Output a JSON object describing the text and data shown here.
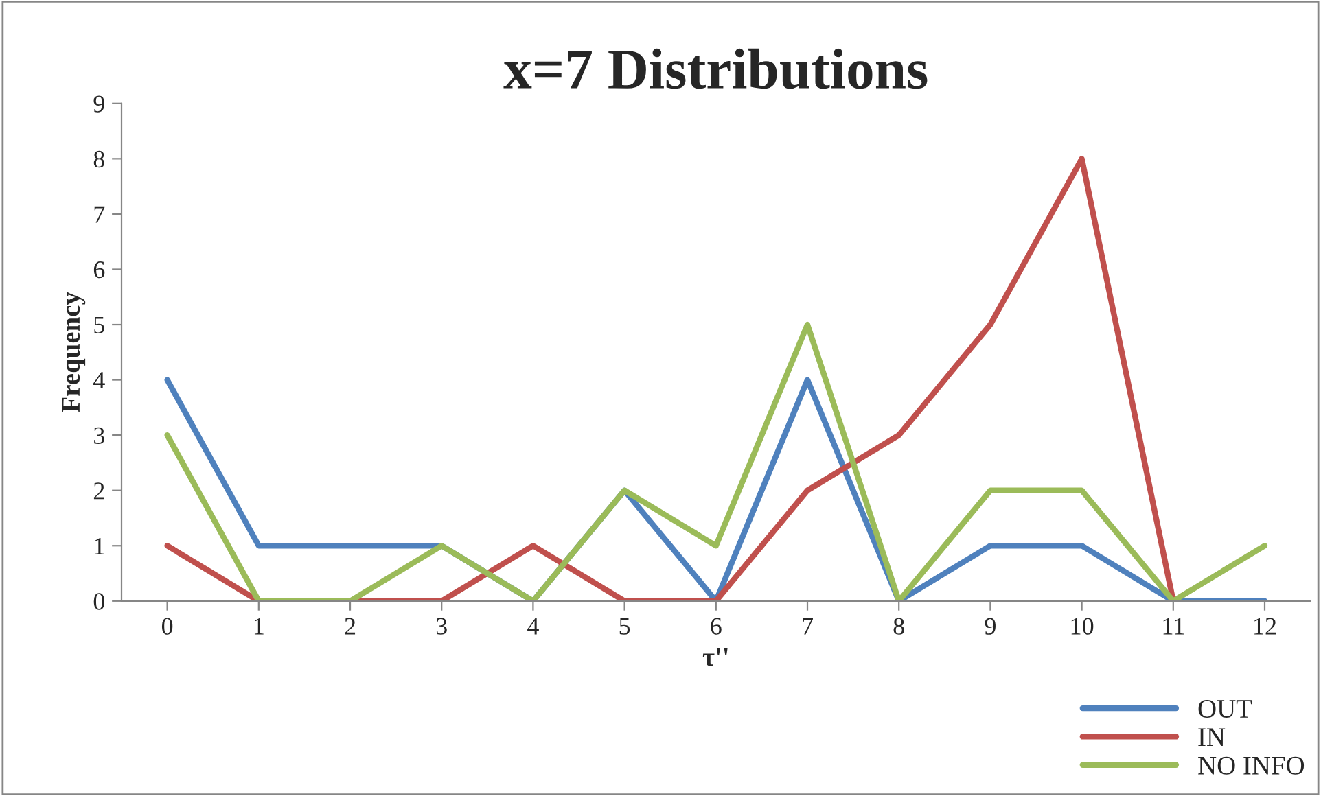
{
  "chart_data": {
    "type": "line",
    "title": "x=7 Distributions",
    "xlabel": "τ''",
    "ylabel": "Frequency",
    "categories": [
      "0",
      "1",
      "2",
      "3",
      "4",
      "5",
      "6",
      "7",
      "8",
      "9",
      "10",
      "11",
      "12"
    ],
    "series": [
      {
        "name": "OUT",
        "color": "#4f81bd",
        "values": [
          4,
          1,
          1,
          1,
          0,
          2,
          0,
          4,
          0,
          1,
          1,
          0,
          0
        ]
      },
      {
        "name": "IN",
        "color": "#c0504d",
        "values": [
          1,
          0,
          0,
          0,
          1,
          0,
          0,
          2,
          3,
          5,
          8,
          0,
          null
        ]
      },
      {
        "name": "NO INFO",
        "color": "#9bbb59",
        "values": [
          3,
          0,
          0,
          1,
          0,
          2,
          1,
          5,
          0,
          2,
          2,
          0,
          1
        ]
      }
    ],
    "ylim": [
      0,
      9
    ],
    "yticks": [
      0,
      1,
      2,
      3,
      4,
      5,
      6,
      7,
      8,
      9
    ],
    "grid": false,
    "legend": "bottom right",
    "marker": "none",
    "line_style": "solid"
  }
}
